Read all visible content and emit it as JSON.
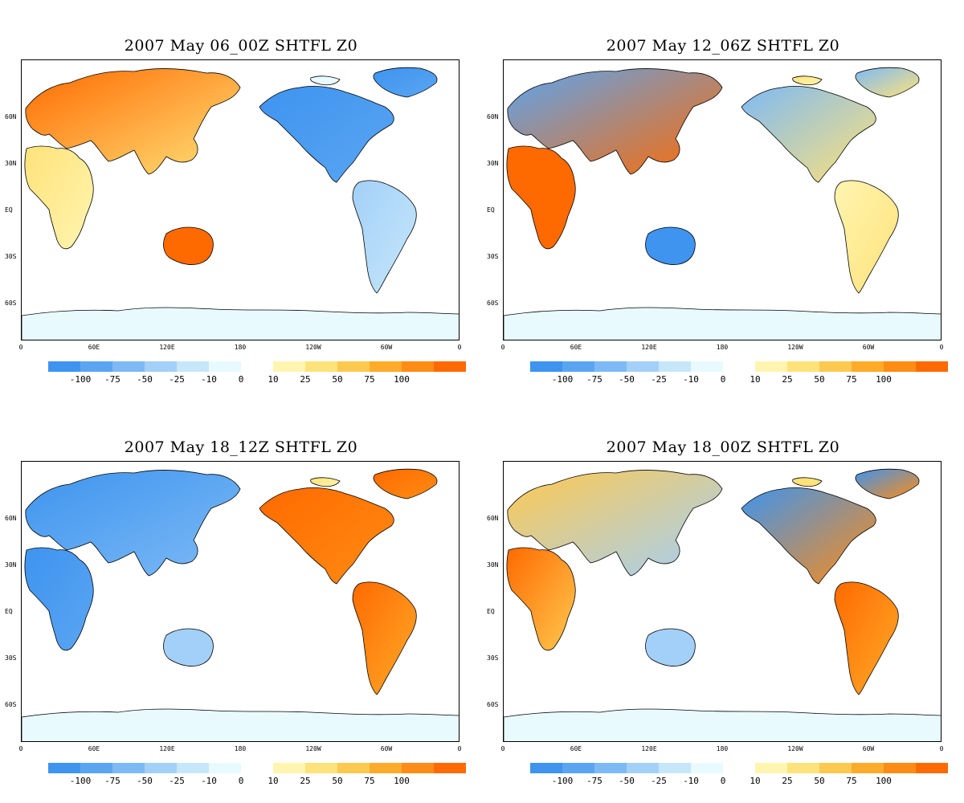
{
  "panels": [
    {
      "title": "2007 May 06_00Z SHTFL Z0",
      "scenario": "asia-warm"
    },
    {
      "title": "2007 May 12_06Z SHTFL Z0",
      "scenario": "europe-africa-warm"
    },
    {
      "title": "2007 May 18_12Z SHTFL Z0",
      "scenario": "americas-warm"
    },
    {
      "title": "2007 May 18_00Z SHTFL Z0",
      "scenario": "mixed"
    }
  ],
  "latitude_labels": [
    "60N",
    "30N",
    "EQ",
    "30S",
    "60S"
  ],
  "longitude_labels": [
    "0",
    "60E",
    "120E",
    "180",
    "120W",
    "60W",
    "0"
  ],
  "colorbar": {
    "negative_colors": [
      "#3e94ef",
      "#5aa5f2",
      "#7dbaf5",
      "#a3d0f8",
      "#c6e7fa",
      "#e8fafd"
    ],
    "positive_colors": [
      "#fff5b0",
      "#ffe27a",
      "#ffc94f",
      "#ffab2a",
      "#ff8c14",
      "#ff6a00"
    ],
    "negative_labels": [
      "-100",
      "-75",
      "-50",
      "-25",
      "-10",
      "0"
    ],
    "positive_labels": [
      "10",
      "25",
      "50",
      "75",
      "100"
    ]
  }
}
